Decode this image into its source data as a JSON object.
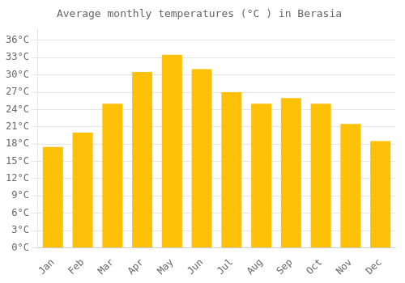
{
  "chart_data": {
    "type": "bar",
    "title": "Average monthly temperatures (°C ) in Berasia",
    "categories": [
      "Jan",
      "Feb",
      "Mar",
      "Apr",
      "May",
      "Jun",
      "Jul",
      "Aug",
      "Sep",
      "Oct",
      "Nov",
      "Dec"
    ],
    "values": [
      17.5,
      20.0,
      25.0,
      30.5,
      33.5,
      31.0,
      27.0,
      25.0,
      26.0,
      25.0,
      21.5,
      18.5
    ],
    "color": "#FFC107",
    "ylim": [
      0,
      38
    ],
    "yticks": [
      {
        "value": 0,
        "label": "0°C"
      },
      {
        "value": 3,
        "label": "3°C"
      },
      {
        "value": 6,
        "label": "6°C"
      },
      {
        "value": 9,
        "label": "9°C"
      },
      {
        "value": 12,
        "label": "12°C"
      },
      {
        "value": 15,
        "label": "15°C"
      },
      {
        "value": 18,
        "label": "18°C"
      },
      {
        "value": 21,
        "label": "21°C"
      },
      {
        "value": 24,
        "label": "24°C"
      },
      {
        "value": 27,
        "label": "27°C"
      },
      {
        "value": 30,
        "label": "30°C"
      },
      {
        "value": 33,
        "label": "33°C"
      },
      {
        "value": 36,
        "label": "36°C"
      }
    ],
    "grid": true
  }
}
